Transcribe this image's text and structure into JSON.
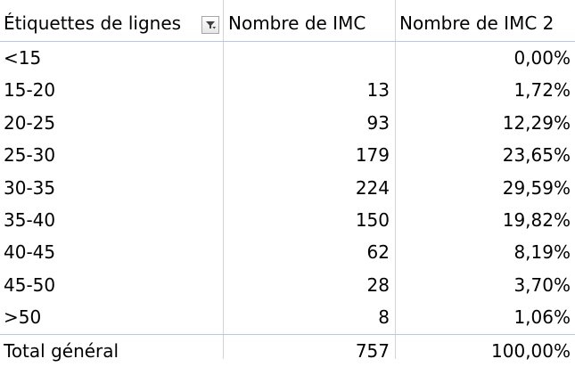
{
  "pivot": {
    "headers": {
      "row_labels": "Étiquettes de lignes",
      "count": "Nombre de IMC",
      "percent": "Nombre de IMC 2"
    },
    "filter_icon": "filter-dropdown-icon",
    "rows": [
      {
        "label": "<15",
        "count": "",
        "percent": "0,00%"
      },
      {
        "label": "15-20",
        "count": "13",
        "percent": "1,72%"
      },
      {
        "label": "20-25",
        "count": "93",
        "percent": "12,29%"
      },
      {
        "label": "25-30",
        "count": "179",
        "percent": "23,65%"
      },
      {
        "label": "30-35",
        "count": "224",
        "percent": "29,59%"
      },
      {
        "label": "35-40",
        "count": "150",
        "percent": "19,82%"
      },
      {
        "label": "40-45",
        "count": "62",
        "percent": "8,19%"
      },
      {
        "label": "45-50",
        "count": "28",
        "percent": "3,70%"
      },
      {
        "label": ">50",
        "count": "8",
        "percent": "1,06%"
      }
    ],
    "total": {
      "label": "Total général",
      "count": "757",
      "percent": "100,00%"
    }
  }
}
